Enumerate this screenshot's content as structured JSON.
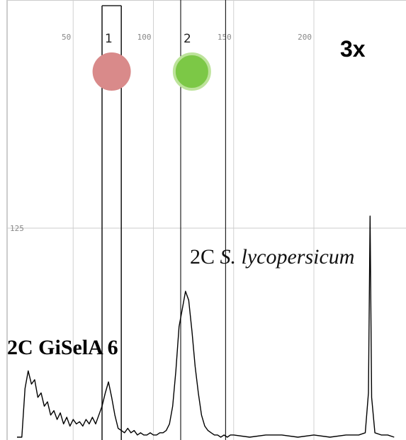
{
  "chart_data": {
    "type": "line",
    "x_ticks": [
      50,
      100,
      150,
      200
    ],
    "y_ticks": [
      125
    ],
    "xlim": [
      0,
      250
    ],
    "gates": [
      {
        "label": "1",
        "range": [
          68,
          80
        ]
      },
      {
        "label": "2",
        "range": [
          117,
          145
        ]
      }
    ],
    "gate_markers": [
      {
        "gate": "1",
        "color": "#d98a8a"
      },
      {
        "gate": "2",
        "color": "#7cc846"
      }
    ],
    "annotations": [
      {
        "id": "magnification",
        "text": "3x"
      },
      {
        "id": "peak_lycopersicum",
        "prefix": "2C ",
        "species": "S. lycopersicum"
      },
      {
        "id": "peak_gisela",
        "text": "2C GiSelA 6"
      }
    ],
    "series": [
      {
        "color": "#000000",
        "x": [
          15,
          18,
          20,
          22,
          24,
          26,
          28,
          30,
          32,
          34,
          36,
          38,
          40,
          42,
          44,
          46,
          48,
          50,
          52,
          54,
          56,
          58,
          60,
          62,
          64,
          66,
          68,
          70,
          72,
          74,
          76,
          78,
          80,
          82,
          84,
          86,
          88,
          90,
          92,
          94,
          96,
          98,
          100,
          102,
          104,
          106,
          108,
          110,
          112,
          114,
          116,
          118,
          120,
          122,
          124,
          126,
          128,
          130,
          132,
          134,
          136,
          138,
          140,
          142,
          144,
          146,
          148,
          150,
          160,
          170,
          180,
          190,
          200,
          210,
          220,
          228,
          232,
          234,
          235,
          236,
          238,
          242,
          246,
          250
        ],
        "y": [
          0,
          0,
          22,
          30,
          24,
          26,
          18,
          20,
          14,
          16,
          10,
          12,
          8,
          11,
          6,
          9,
          5,
          8,
          6,
          7,
          5,
          8,
          6,
          9,
          6,
          10,
          14,
          20,
          25,
          18,
          10,
          4,
          3,
          2,
          4,
          2,
          3,
          1,
          2,
          1,
          1,
          2,
          1,
          1,
          2,
          2,
          3,
          6,
          14,
          30,
          50,
          58,
          66,
          62,
          48,
          32,
          20,
          10,
          5,
          3,
          2,
          1,
          1,
          0,
          1,
          0,
          1,
          1,
          0,
          1,
          1,
          0,
          1,
          0,
          1,
          1,
          2,
          20,
          100,
          18,
          2,
          1,
          1,
          0
        ]
      }
    ]
  }
}
